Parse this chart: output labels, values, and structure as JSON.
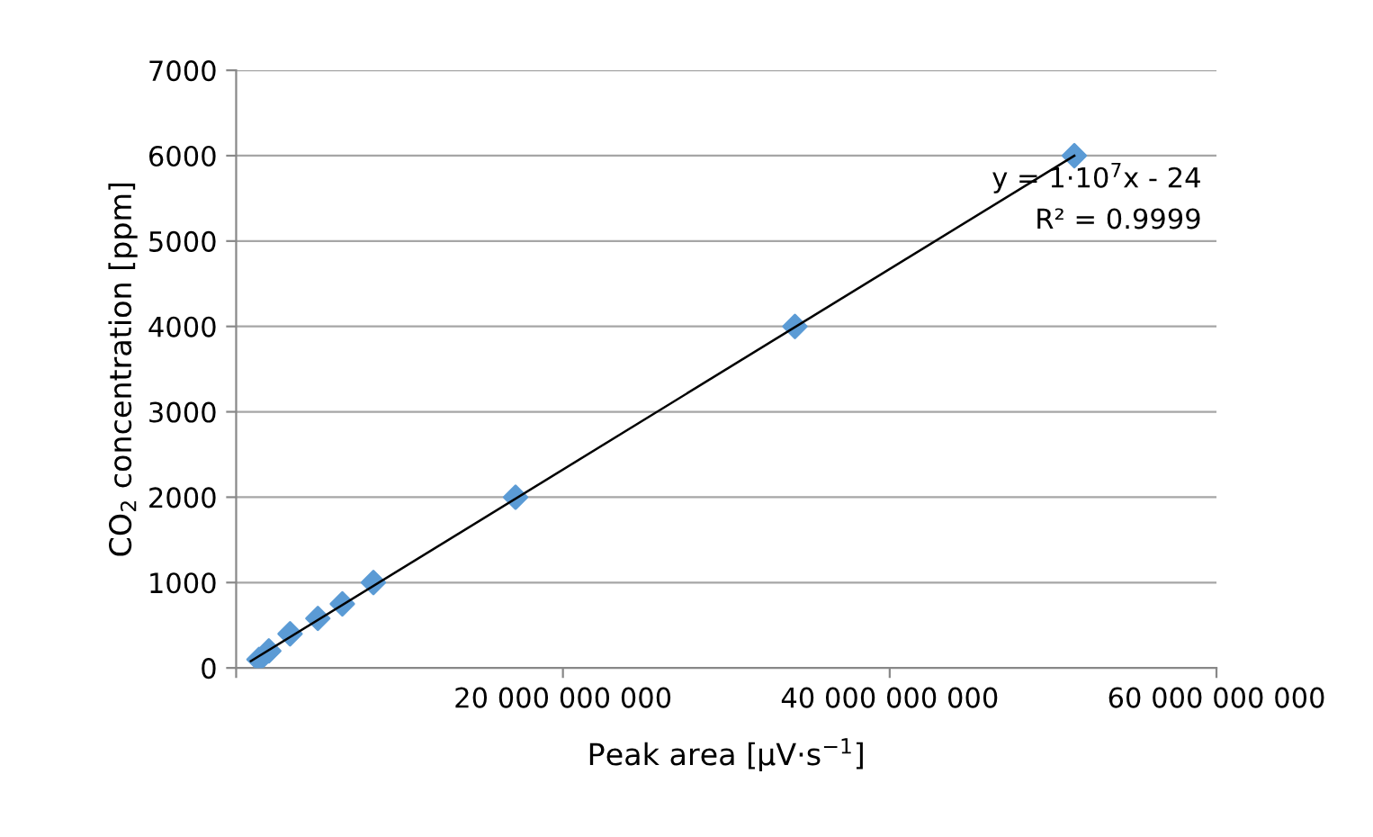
{
  "chart_data": {
    "type": "scatter",
    "xlabel": "Peak area [µV·s$^{−1}$]",
    "ylabel": "CO$_{2}$ concentration [ppm]",
    "annotations": [
      "y = 1·10$^{7}$x - 24",
      "R² = 0.9999"
    ],
    "series": [
      {
        "color": "#5b9bd5",
        "marker": "diamond",
        "x": [
          1400000000,
          2000000000,
          3300000000,
          5000000000,
          6500000000,
          8400000000,
          17100000000,
          34200000000,
          51300000000
        ],
        "values": [
          100,
          200,
          400,
          580,
          750,
          1000,
          2000,
          4000,
          6000
        ]
      },
      {
        "type": "line",
        "color": "#000000",
        "marker": "none",
        "line_style": "solid",
        "x": [
          900000000,
          51300000000
        ],
        "values": [
          80,
          6000
        ]
      }
    ],
    "xlim": [
      0,
      60000000000
    ],
    "xticks": [
      {
        "value": 0,
        "label": null
      },
      {
        "value": 20000000000,
        "label": "20 000 000 000"
      },
      {
        "value": 40000000000,
        "label": "40 000 000 000"
      },
      {
        "value": 60000000000,
        "label": "60 000 000 000"
      }
    ],
    "ylim": [
      0,
      7000
    ],
    "yticks": [
      0,
      1000,
      2000,
      3000,
      4000,
      5000,
      6000,
      7000
    ],
    "grid": "y",
    "legend": false
  }
}
